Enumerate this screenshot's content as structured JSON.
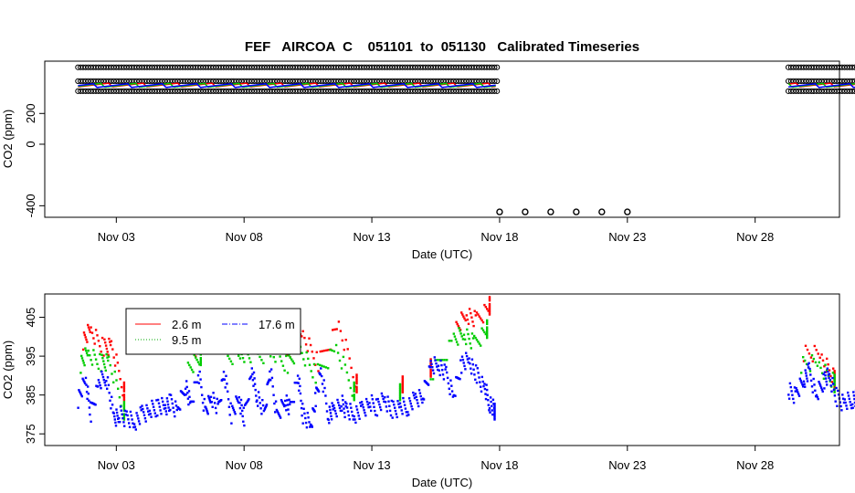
{
  "chart_data": [
    {
      "type": "scatter",
      "title": "FEF   AIRCOA  C    051101  to  051130   Calibrated Timeseries",
      "xlabel": "Date (UTC)",
      "ylabel": "CO2 (ppm)",
      "x_ticks": [
        "Nov 03",
        "Nov 08",
        "Nov 13",
        "Nov 18",
        "Nov 23",
        "Nov 28"
      ],
      "x_tick_days": [
        3,
        8,
        13,
        18,
        23,
        28
      ],
      "xlim": [
        0.2,
        31.3
      ],
      "y_ticks": [
        -400,
        0,
        200
      ],
      "ylim": [
        -475,
        540
      ],
      "series": [
        {
          "name": "2.6 m",
          "color": "#ff0000",
          "x_range": [
            1.5,
            17.9
          ],
          "approx_value": 385
        },
        {
          "name": "9.5 m",
          "color": "#00cc00",
          "x_range": [
            1.5,
            17.9
          ],
          "approx_value": 383
        },
        {
          "name": "17.6 m",
          "color": "#0000ff",
          "x_range": [
            1.5,
            17.9
          ],
          "approx_value": 381
        },
        {
          "name": "2.6 m",
          "color": "#ff0000",
          "x_range": [
            29.3,
            32.0
          ],
          "approx_value": 385
        },
        {
          "name": "9.5 m",
          "color": "#00cc00",
          "x_range": [
            29.3,
            32.0
          ],
          "approx_value": 383
        },
        {
          "name": "17.6 m",
          "color": "#0000ff",
          "x_range": [
            29.3,
            32.0
          ],
          "approx_value": 381
        }
      ],
      "flag_points": {
        "color": "#000000",
        "bands": [
          500,
          410,
          345
        ],
        "segments": [
          [
            1.5,
            17.9
          ],
          [
            29.3,
            32.0
          ]
        ],
        "low_points_x": [
          18.0,
          19.0,
          20.0,
          21.0,
          22.0,
          23.0
        ],
        "low_points_y": -440
      },
      "grid": false
    },
    {
      "type": "scatter",
      "title": "",
      "xlabel": "Date (UTC)",
      "ylabel": "CO2 (ppm)",
      "x_ticks": [
        "Nov 03",
        "Nov 08",
        "Nov 13",
        "Nov 18",
        "Nov 23",
        "Nov 28"
      ],
      "x_tick_days": [
        3,
        8,
        13,
        18,
        23,
        28
      ],
      "xlim": [
        0.2,
        31.3
      ],
      "y_ticks": [
        375,
        385,
        395,
        405
      ],
      "ylim": [
        372,
        411
      ],
      "legend": {
        "placement": "top-left",
        "entries": [
          {
            "label": "2.6 m",
            "color": "#ff0000",
            "style": "solid"
          },
          {
            "label": "9.5 m",
            "color": "#00aa00",
            "style": "dotted"
          },
          {
            "label": "17.6 m",
            "color": "#0000ff",
            "style": "dashdot"
          }
        ]
      },
      "series": [
        {
          "name": "17.6 m",
          "color": "#0000ff",
          "x": [
            1.5,
            1.8,
            2.0,
            2.3,
            2.6,
            2.9,
            3.1,
            3.4,
            3.7,
            4.0,
            4.3,
            4.6,
            4.9,
            5.1,
            5.4,
            5.7,
            5.9,
            6.2,
            6.5,
            6.7,
            7.0,
            7.2,
            7.5,
            7.8,
            8.0,
            8.3,
            8.5,
            8.8,
            9.0,
            9.3,
            9.6,
            9.8,
            10.1,
            10.3,
            10.6,
            10.8,
            11.0,
            11.3,
            11.5,
            11.8,
            12.0,
            12.3,
            12.6,
            12.9,
            13.2,
            13.5,
            13.8,
            14.1,
            14.4,
            14.7,
            15.0,
            15.3,
            15.6,
            15.9,
            16.2,
            16.5,
            16.8,
            17.1,
            17.4,
            17.6,
            17.8,
            29.3,
            29.6,
            29.9,
            30.1,
            30.4,
            30.7,
            30.9,
            31.2,
            31.5,
            31.8,
            32.0
          ],
          "y": [
            384,
            389,
            380,
            388,
            390,
            379,
            380,
            379,
            378,
            380,
            381,
            382,
            382,
            383,
            381,
            388,
            382,
            391,
            380,
            385,
            381,
            391,
            380,
            384,
            379,
            391,
            385,
            380,
            392,
            379,
            384,
            381,
            390,
            380,
            377,
            384,
            391,
            380,
            381,
            383,
            381,
            380,
            381,
            383,
            382,
            384,
            381,
            382,
            382,
            384,
            385,
            392,
            393,
            390,
            385,
            393,
            394,
            390,
            387,
            383,
            381,
            386,
            385,
            389,
            391,
            385,
            389,
            390,
            384,
            383,
            384,
            384
          ]
        },
        {
          "name": "9.5 m",
          "color": "#00cc00",
          "x": [
            1.6,
            1.9,
            2.4,
            2.7,
            3.3,
            5.8,
            6.3,
            7.3,
            7.9,
            8.4,
            9.1,
            9.7,
            10.2,
            10.8,
            11.6,
            12.3,
            14.1,
            15.3,
            16.2,
            16.6,
            17.0,
            17.5,
            29.8,
            30.5,
            31.1
          ],
          "y": [
            393,
            396,
            393,
            394,
            381,
            392,
            395,
            394,
            396,
            395,
            396,
            393,
            397,
            390,
            397,
            386,
            386,
            390,
            399,
            401,
            398,
            402,
            393,
            393,
            388
          ]
        },
        {
          "name": "2.6 m",
          "color": "#ff0000",
          "x": [
            1.7,
            2.0,
            2.5,
            2.8,
            3.3,
            5.9,
            6.4,
            7.4,
            8.0,
            8.5,
            9.2,
            9.8,
            10.3,
            10.9,
            11.7,
            12.4,
            14.2,
            15.3,
            16.3,
            16.7,
            17.1,
            17.6,
            29.9,
            30.6,
            31.1
          ],
          "y": [
            399,
            402,
            397,
            398,
            386,
            396,
            399,
            400,
            404,
            402,
            400,
            397,
            401,
            393,
            403,
            388,
            388,
            392,
            402,
            406,
            404,
            408,
            396,
            395,
            389
          ]
        }
      ],
      "grid": false
    }
  ]
}
